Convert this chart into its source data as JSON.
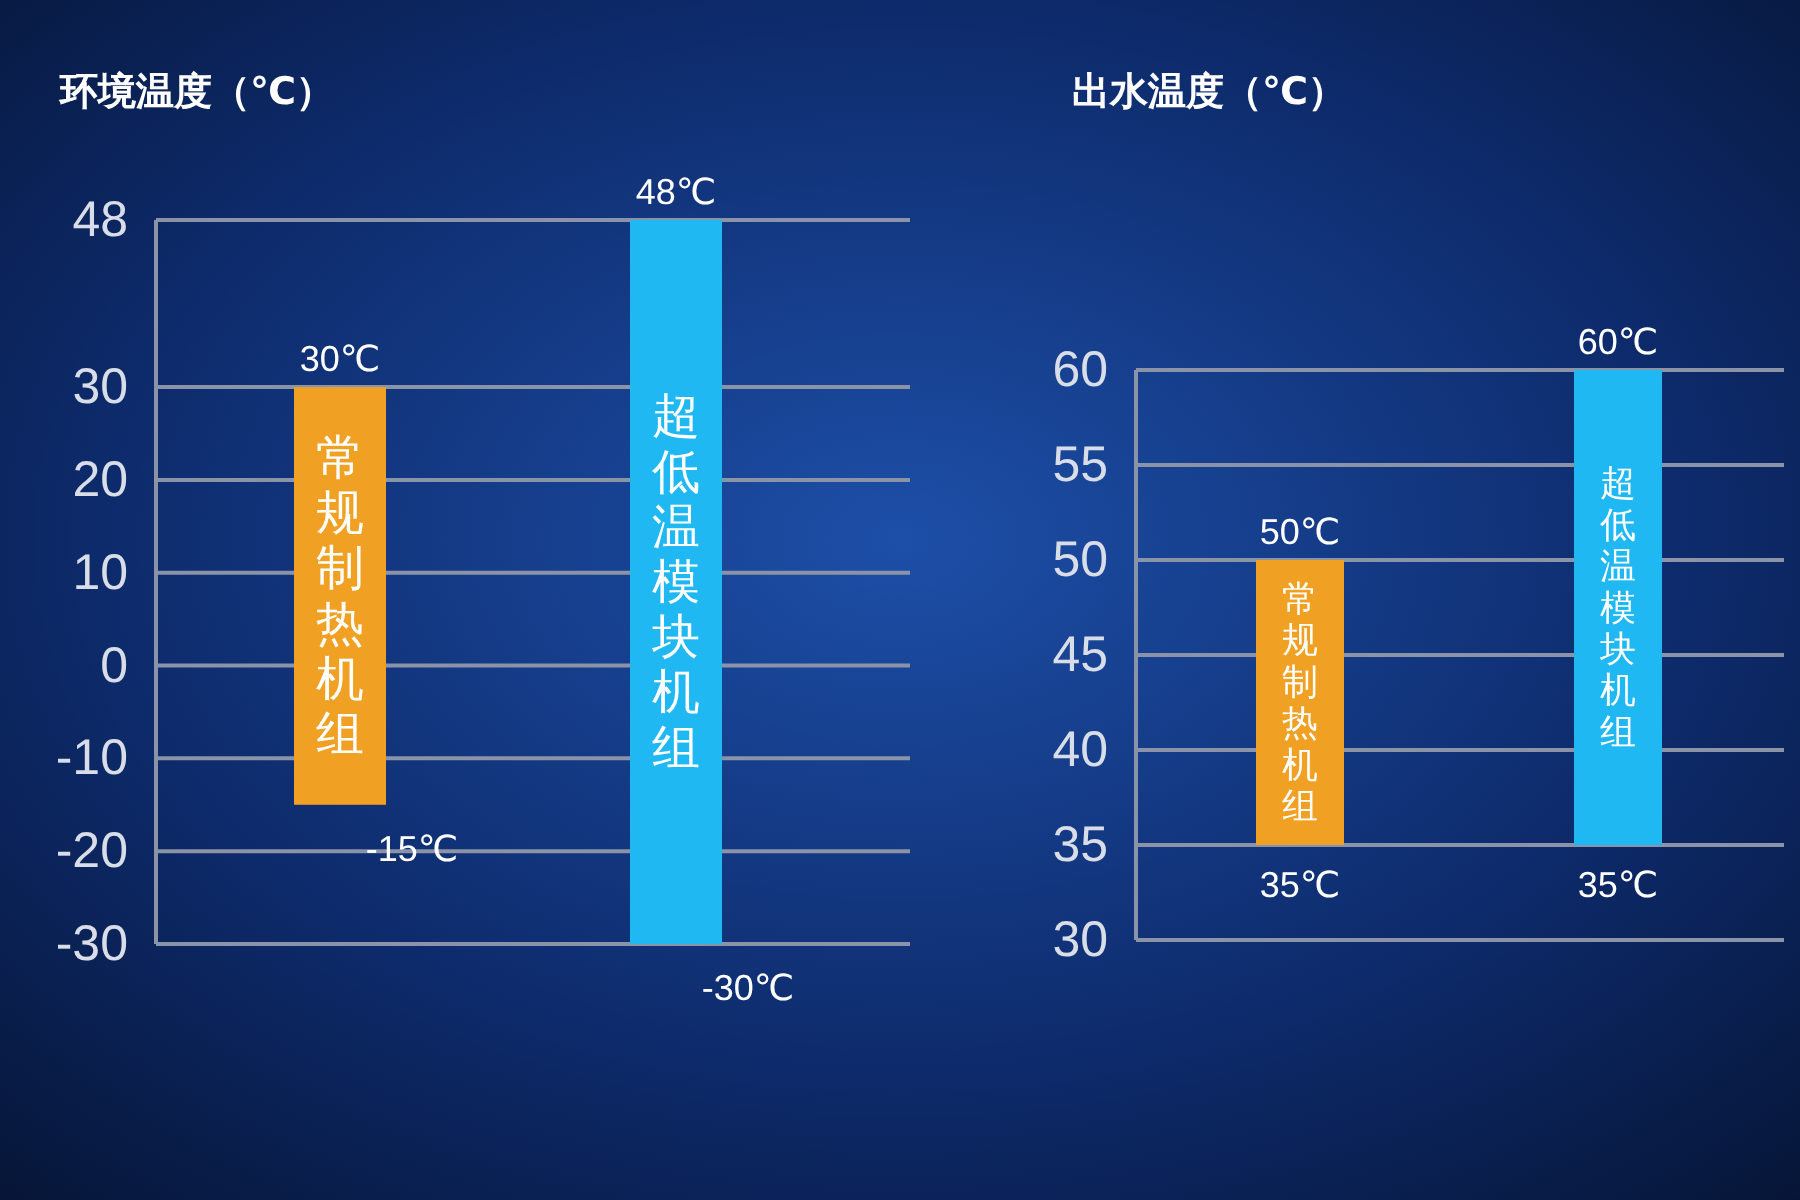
{
  "chart_data": [
    {
      "type": "bar",
      "ylabel": "环境温度（℃）",
      "categories": [
        "常规制热机组",
        "超低温模块机组"
      ],
      "values": [
        45,
        78
      ],
      "base": [
        -15,
        -30
      ],
      "colors": [
        "#f0a023",
        "#1fb8f2"
      ],
      "ylim": [
        -30,
        48
      ],
      "yticks": [
        -30,
        -20,
        -10,
        0,
        10,
        20,
        30,
        48
      ],
      "grid": "y",
      "annotations": [
        {
          "text": "30℃",
          "x": "常规制热机组",
          "y": 30
        },
        {
          "text": "-15℃",
          "x": "常规制热机组",
          "y": -15
        },
        {
          "text": "48℃",
          "x": "超低温模块机组",
          "y": 48
        },
        {
          "text": "-30℃",
          "x": "超低温模块机组",
          "y": -30
        }
      ]
    },
    {
      "type": "bar",
      "ylabel": "出水温度（℃）",
      "categories": [
        "常规制热机组",
        "超低温模块机组"
      ],
      "values": [
        15,
        25
      ],
      "base": [
        35,
        35
      ],
      "colors": [
        "#f0a023",
        "#1fb8f2"
      ],
      "ylim": [
        30,
        60
      ],
      "yticks": [
        30,
        35,
        40,
        45,
        50,
        55,
        60
      ],
      "grid": "y",
      "annotations": [
        {
          "text": "50℃",
          "x": "常规制热机组",
          "y": 50
        },
        {
          "text": "35℃",
          "x": "常规制热机组",
          "y": 35
        },
        {
          "text": "60℃",
          "x": "超低温模块机组",
          "y": 60
        },
        {
          "text": "35℃",
          "x": "超低温模块机组",
          "y": 35
        }
      ]
    }
  ]
}
